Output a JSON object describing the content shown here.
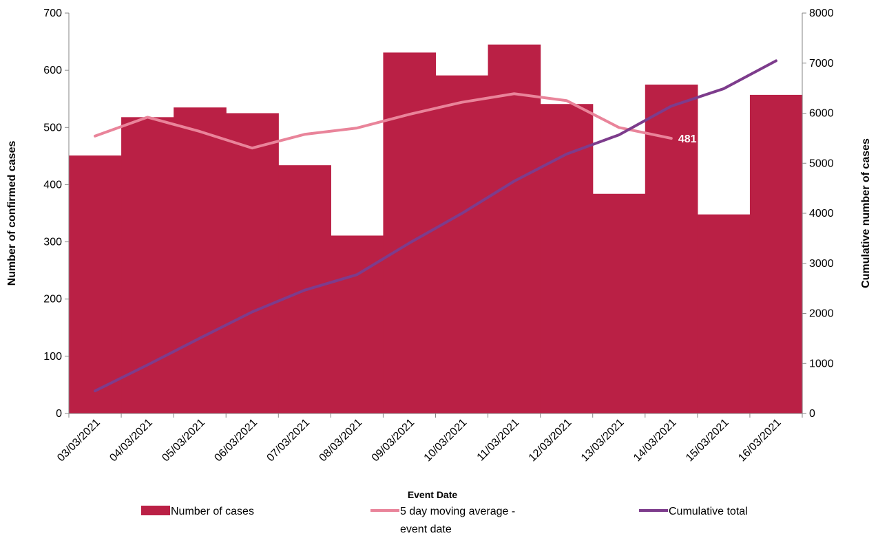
{
  "chart_data": {
    "type": "bar",
    "categories": [
      "03/03/2021",
      "04/03/2021",
      "05/03/2021",
      "06/03/2021",
      "07/03/2021",
      "08/03/2021",
      "09/03/2021",
      "10/03/2021",
      "11/03/2021",
      "12/03/2021",
      "13/03/2021",
      "14/03/2021",
      "15/03/2021",
      "16/03/2021"
    ],
    "xlabel": "Event Date",
    "ylabel": "Number of confirmed cases",
    "y2label": "Cumulative number of cases",
    "ylim": [
      0,
      700
    ],
    "y2lim": [
      0,
      8000
    ],
    "yticks": [
      "0",
      "100",
      "200",
      "300",
      "400",
      "500",
      "600",
      "700"
    ],
    "y2ticks": [
      "0",
      "1000",
      "2000",
      "3000",
      "4000",
      "5000",
      "6000",
      "7000",
      "8000"
    ],
    "series": [
      {
        "name": "Number of cases",
        "type": "bar",
        "axis": "left",
        "color": "#BA2045",
        "values": [
          451,
          518,
          535,
          525,
          434,
          311,
          631,
          591,
          645,
          541,
          384,
          575,
          348,
          557
        ]
      },
      {
        "name": "5 day moving average - event date",
        "legend_lines": [
          "5 day moving average -",
          "event date"
        ],
        "type": "line",
        "axis": "left",
        "color": "#E9849A",
        "values": [
          485,
          518,
          493,
          464,
          488,
          499,
          523,
          544,
          559,
          547,
          500,
          481,
          null,
          null
        ],
        "data_label": {
          "index": 11,
          "text": "481"
        }
      },
      {
        "name": "Cumulative total",
        "type": "line",
        "axis": "right",
        "color": "#7D3C8C",
        "values": [
          451,
          969,
          1504,
          2029,
          2463,
          2774,
          3405,
          3996,
          4641,
          5182,
          5566,
          6141,
          6489,
          7046
        ]
      }
    ],
    "legend_position": "bottom",
    "grid": false
  }
}
